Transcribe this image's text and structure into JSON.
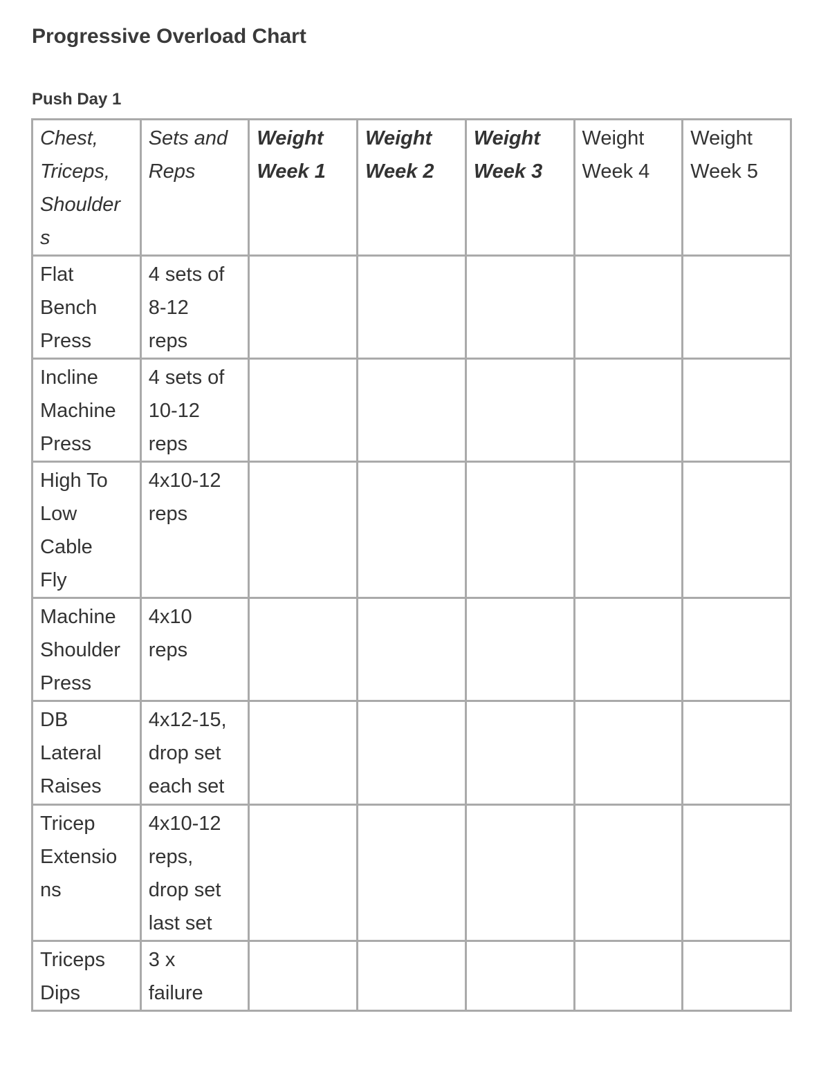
{
  "title": "Progressive Overload Chart",
  "subtitle": "Push Day 1",
  "table": {
    "headers": [
      "Chest,\nTriceps,\nShoulder\ns",
      "Sets and\nReps",
      "Weight\nWeek 1",
      "Weight\nWeek 2",
      "Weight\nWeek 3",
      "Weight\nWeek 4",
      "Weight\nWeek 5"
    ],
    "rows": [
      {
        "exercise": "Flat\nBench\nPress",
        "sets": "4 sets of\n8-12\nreps"
      },
      {
        "exercise": "Incline\nMachine\nPress",
        "sets": "4 sets of\n10-12\nreps"
      },
      {
        "exercise": "High To\nLow\nCable\nFly",
        "sets": "4x10-12\nreps"
      },
      {
        "exercise": "Machine\nShoulder\nPress",
        "sets": "4x10\nreps"
      },
      {
        "exercise": "DB\nLateral\nRaises",
        "sets": "4x12-15,\ndrop set\neach set"
      },
      {
        "exercise": "Tricep\nExtensio\nns",
        "sets": "4x10-12\nreps,\ndrop set\nlast set"
      },
      {
        "exercise": "Triceps\nDips",
        "sets": "3 x\nfailure"
      }
    ]
  }
}
